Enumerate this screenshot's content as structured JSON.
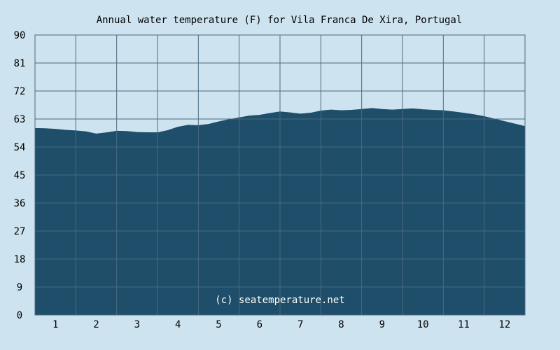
{
  "chart_data": {
    "type": "area",
    "title": "Annual water temperature (F) for Vila Franca De Xira, Portugal",
    "xlabel": "",
    "ylabel": "",
    "categories": [
      "1",
      "2",
      "3",
      "4",
      "5",
      "6",
      "7",
      "8",
      "9",
      "10",
      "11",
      "12"
    ],
    "ylim": [
      0,
      90
    ],
    "yticks": [
      "0",
      "9",
      "18",
      "27",
      "36",
      "45",
      "54",
      "63",
      "72",
      "81",
      "90"
    ],
    "grid": true,
    "watermark": "(c) seatemperature.net",
    "series": [
      {
        "name": "",
        "x": [
          0.0,
          0.25,
          0.5,
          0.75,
          1.0,
          1.25,
          1.5,
          1.75,
          2.0,
          2.25,
          2.5,
          2.75,
          3.0,
          3.25,
          3.5,
          3.75,
          4.0,
          4.25,
          4.5,
          4.75,
          5.0,
          5.25,
          5.5,
          5.75,
          6.0,
          6.25,
          6.5,
          6.75,
          7.0,
          7.25,
          7.5,
          7.75,
          8.0,
          8.25,
          8.5,
          8.75,
          9.0,
          9.25,
          9.5,
          9.75,
          10.0,
          10.25,
          10.5,
          10.75,
          11.0,
          11.25,
          11.5,
          11.75,
          12.0
        ],
        "values": [
          60.0,
          59.9,
          59.7,
          59.4,
          59.2,
          58.9,
          58.2,
          58.6,
          59.1,
          59.0,
          58.7,
          58.6,
          58.6,
          59.3,
          60.4,
          61.0,
          60.9,
          61.3,
          62.1,
          62.8,
          63.4,
          64.0,
          64.2,
          64.8,
          65.3,
          65.0,
          64.6,
          64.9,
          65.6,
          65.9,
          65.7,
          65.8,
          66.1,
          66.4,
          66.1,
          65.9,
          66.1,
          66.3,
          66.0,
          65.8,
          65.7,
          65.3,
          64.9,
          64.4,
          63.8,
          63.0,
          62.2,
          61.4,
          60.6
        ],
        "color": "#1e4e6a"
      }
    ],
    "colors": {
      "background": "#cde3ef",
      "plot_border": "#4a6b80",
      "grid": "#4a6b80",
      "fill": "#1e4e6a",
      "text": "#000000",
      "watermark": "#ffffff"
    }
  }
}
